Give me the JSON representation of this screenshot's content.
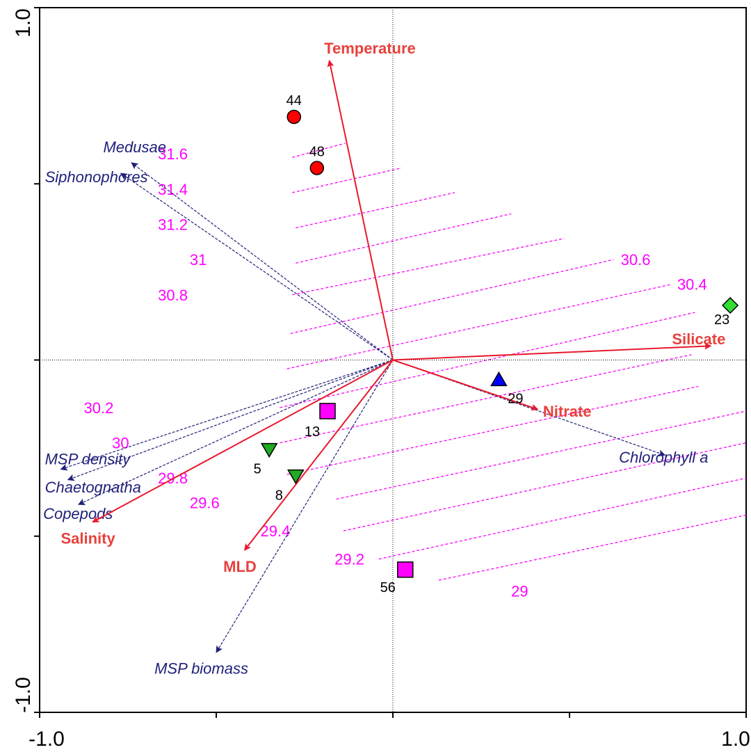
{
  "chart_data": {
    "type": "scatter",
    "subtype": "ordination biplot",
    "xlim": [
      -1.0,
      1.0
    ],
    "ylim": [
      -1.0,
      1.0
    ],
    "x_tick_values": [
      -1.0,
      -0.5,
      0,
      0.5,
      1.0
    ],
    "y_tick_values": [
      -1.0,
      -0.5,
      0,
      0.5,
      1.0
    ],
    "x_tick_labels": [
      "-1.0",
      "1.0"
    ],
    "y_tick_labels": [
      "1.0",
      "-1.0"
    ],
    "grid": false,
    "zero_lines": true,
    "colors": {
      "environmental": "#e8192c",
      "environmental_label": "#e8413c",
      "species": "#1f1f7a",
      "isolines": "#ff00ff",
      "axis": "#000000"
    },
    "environmental_vectors": [
      {
        "name": "Temperature",
        "x": -0.18,
        "y": 0.85
      },
      {
        "name": "Silicate",
        "x": 0.9,
        "y": 0.04
      },
      {
        "name": "Nitrate",
        "x": 0.41,
        "y": -0.14
      },
      {
        "name": "Salinity",
        "x": -0.85,
        "y": -0.46
      },
      {
        "name": "MLD",
        "x": -0.42,
        "y": -0.54
      }
    ],
    "species_vectors": [
      {
        "name": "Medusae",
        "x": -0.74,
        "y": 0.56
      },
      {
        "name": "Siphonophores",
        "x": -0.77,
        "y": 0.53
      },
      {
        "name": "MSP density",
        "x": -0.94,
        "y": -0.31
      },
      {
        "name": "Chaetognatha",
        "x": -0.92,
        "y": -0.34
      },
      {
        "name": "Copepods",
        "x": -0.89,
        "y": -0.41
      },
      {
        "name": "MSP biomass",
        "x": -0.5,
        "y": -0.83
      },
      {
        "name": "Chlorophyll a",
        "x": 0.77,
        "y": -0.27
      }
    ],
    "sites": [
      {
        "label": "44",
        "x": -0.28,
        "y": 0.69,
        "shape": "circle",
        "color": "#ff0000"
      },
      {
        "label": "48",
        "x": -0.215,
        "y": 0.545,
        "shape": "circle",
        "color": "#ff0000"
      },
      {
        "label": "23",
        "x": 0.955,
        "y": 0.155,
        "shape": "diamond",
        "color": "#33dd33"
      },
      {
        "label": "29",
        "x": 0.3,
        "y": -0.055,
        "shape": "triangle-up",
        "color": "#0000ff"
      },
      {
        "label": "13",
        "x": -0.185,
        "y": -0.145,
        "shape": "square",
        "color": "#ff00ff"
      },
      {
        "label": "5",
        "x": -0.35,
        "y": -0.255,
        "shape": "triangle-down",
        "color": "#22aa22"
      },
      {
        "label": "8",
        "x": -0.275,
        "y": -0.33,
        "shape": "triangle-down",
        "color": "#22aa22"
      },
      {
        "label": "56",
        "x": 0.035,
        "y": -0.595,
        "shape": "square",
        "color": "#ff00ff"
      }
    ],
    "isolines": {
      "variable": "Salinity",
      "lines": [
        {
          "value": "31.6",
          "x1": -0.285,
          "y1": 0.575,
          "x2": -0.135,
          "y2": 0.615
        },
        {
          "value": "31.4",
          "x1": -0.285,
          "y1": 0.475,
          "x2": 0.025,
          "y2": 0.545
        },
        {
          "value": "31.2",
          "x1": -0.275,
          "y1": 0.375,
          "x2": 0.175,
          "y2": 0.475
        },
        {
          "value": "31",
          "x1": -0.275,
          "y1": 0.275,
          "x2": 0.335,
          "y2": 0.415
        },
        {
          "value": "30.8",
          "x1": -0.285,
          "y1": 0.185,
          "x2": 0.485,
          "y2": 0.345
        },
        {
          "value": "30.6",
          "x1": -0.29,
          "y1": 0.075,
          "x2": 0.625,
          "y2": 0.285
        },
        {
          "value": "30.4",
          "x1": -0.3,
          "y1": -0.025,
          "x2": 0.79,
          "y2": 0.215
        },
        {
          "value": "30.2",
          "x1": -0.32,
          "y1": -0.135,
          "x2": 0.855,
          "y2": 0.135
        },
        {
          "value": "30",
          "x1": -0.32,
          "y1": -0.235,
          "x2": 0.845,
          "y2": 0.015
        },
        {
          "value": "29.8",
          "x1": -0.3,
          "y1": -0.325,
          "x2": 0.865,
          "y2": -0.075
        },
        {
          "value": "29.6",
          "x1": -0.16,
          "y1": -0.395,
          "x2": 1.0,
          "y2": -0.145
        },
        {
          "value": "29.4",
          "x1": -0.14,
          "y1": -0.485,
          "x2": 1.0,
          "y2": -0.235
        },
        {
          "value": "29.2",
          "x1": -0.04,
          "y1": -0.565,
          "x2": 1.0,
          "y2": -0.335
        },
        {
          "value": "29",
          "x1": 0.13,
          "y1": -0.625,
          "x2": 1.0,
          "y2": -0.44
        }
      ]
    }
  }
}
